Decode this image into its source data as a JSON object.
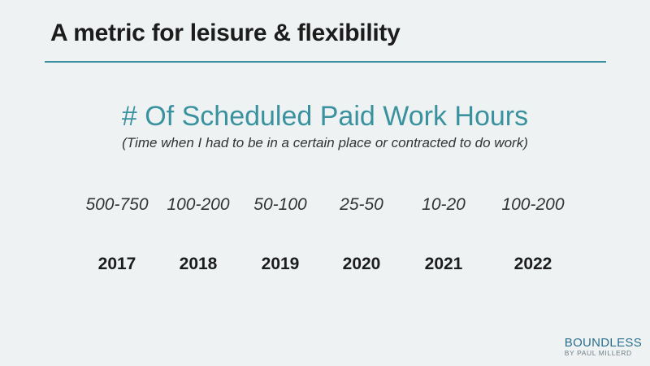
{
  "slide": {
    "title": "A metric for leisure & flexibility",
    "heading": "# Of Scheduled Paid Work Hours",
    "subtitle": "(Time when I had to be in a certain place or contracted to do work)"
  },
  "columns": [
    {
      "range": "500-750",
      "year": "2017"
    },
    {
      "range": "100-200",
      "year": "2018"
    },
    {
      "range": "50-100",
      "year": "2019"
    },
    {
      "range": "25-50",
      "year": "2020"
    },
    {
      "range": "10-20",
      "year": "2021"
    },
    {
      "range": "100-200",
      "year": "2022"
    }
  ],
  "brand": {
    "name": "BOUNDLESS",
    "byline": "BY PAUL MILLERD"
  },
  "colors": {
    "accent": "#3a929e",
    "background": "#eef2f3",
    "brand": "#2a6f8c"
  }
}
